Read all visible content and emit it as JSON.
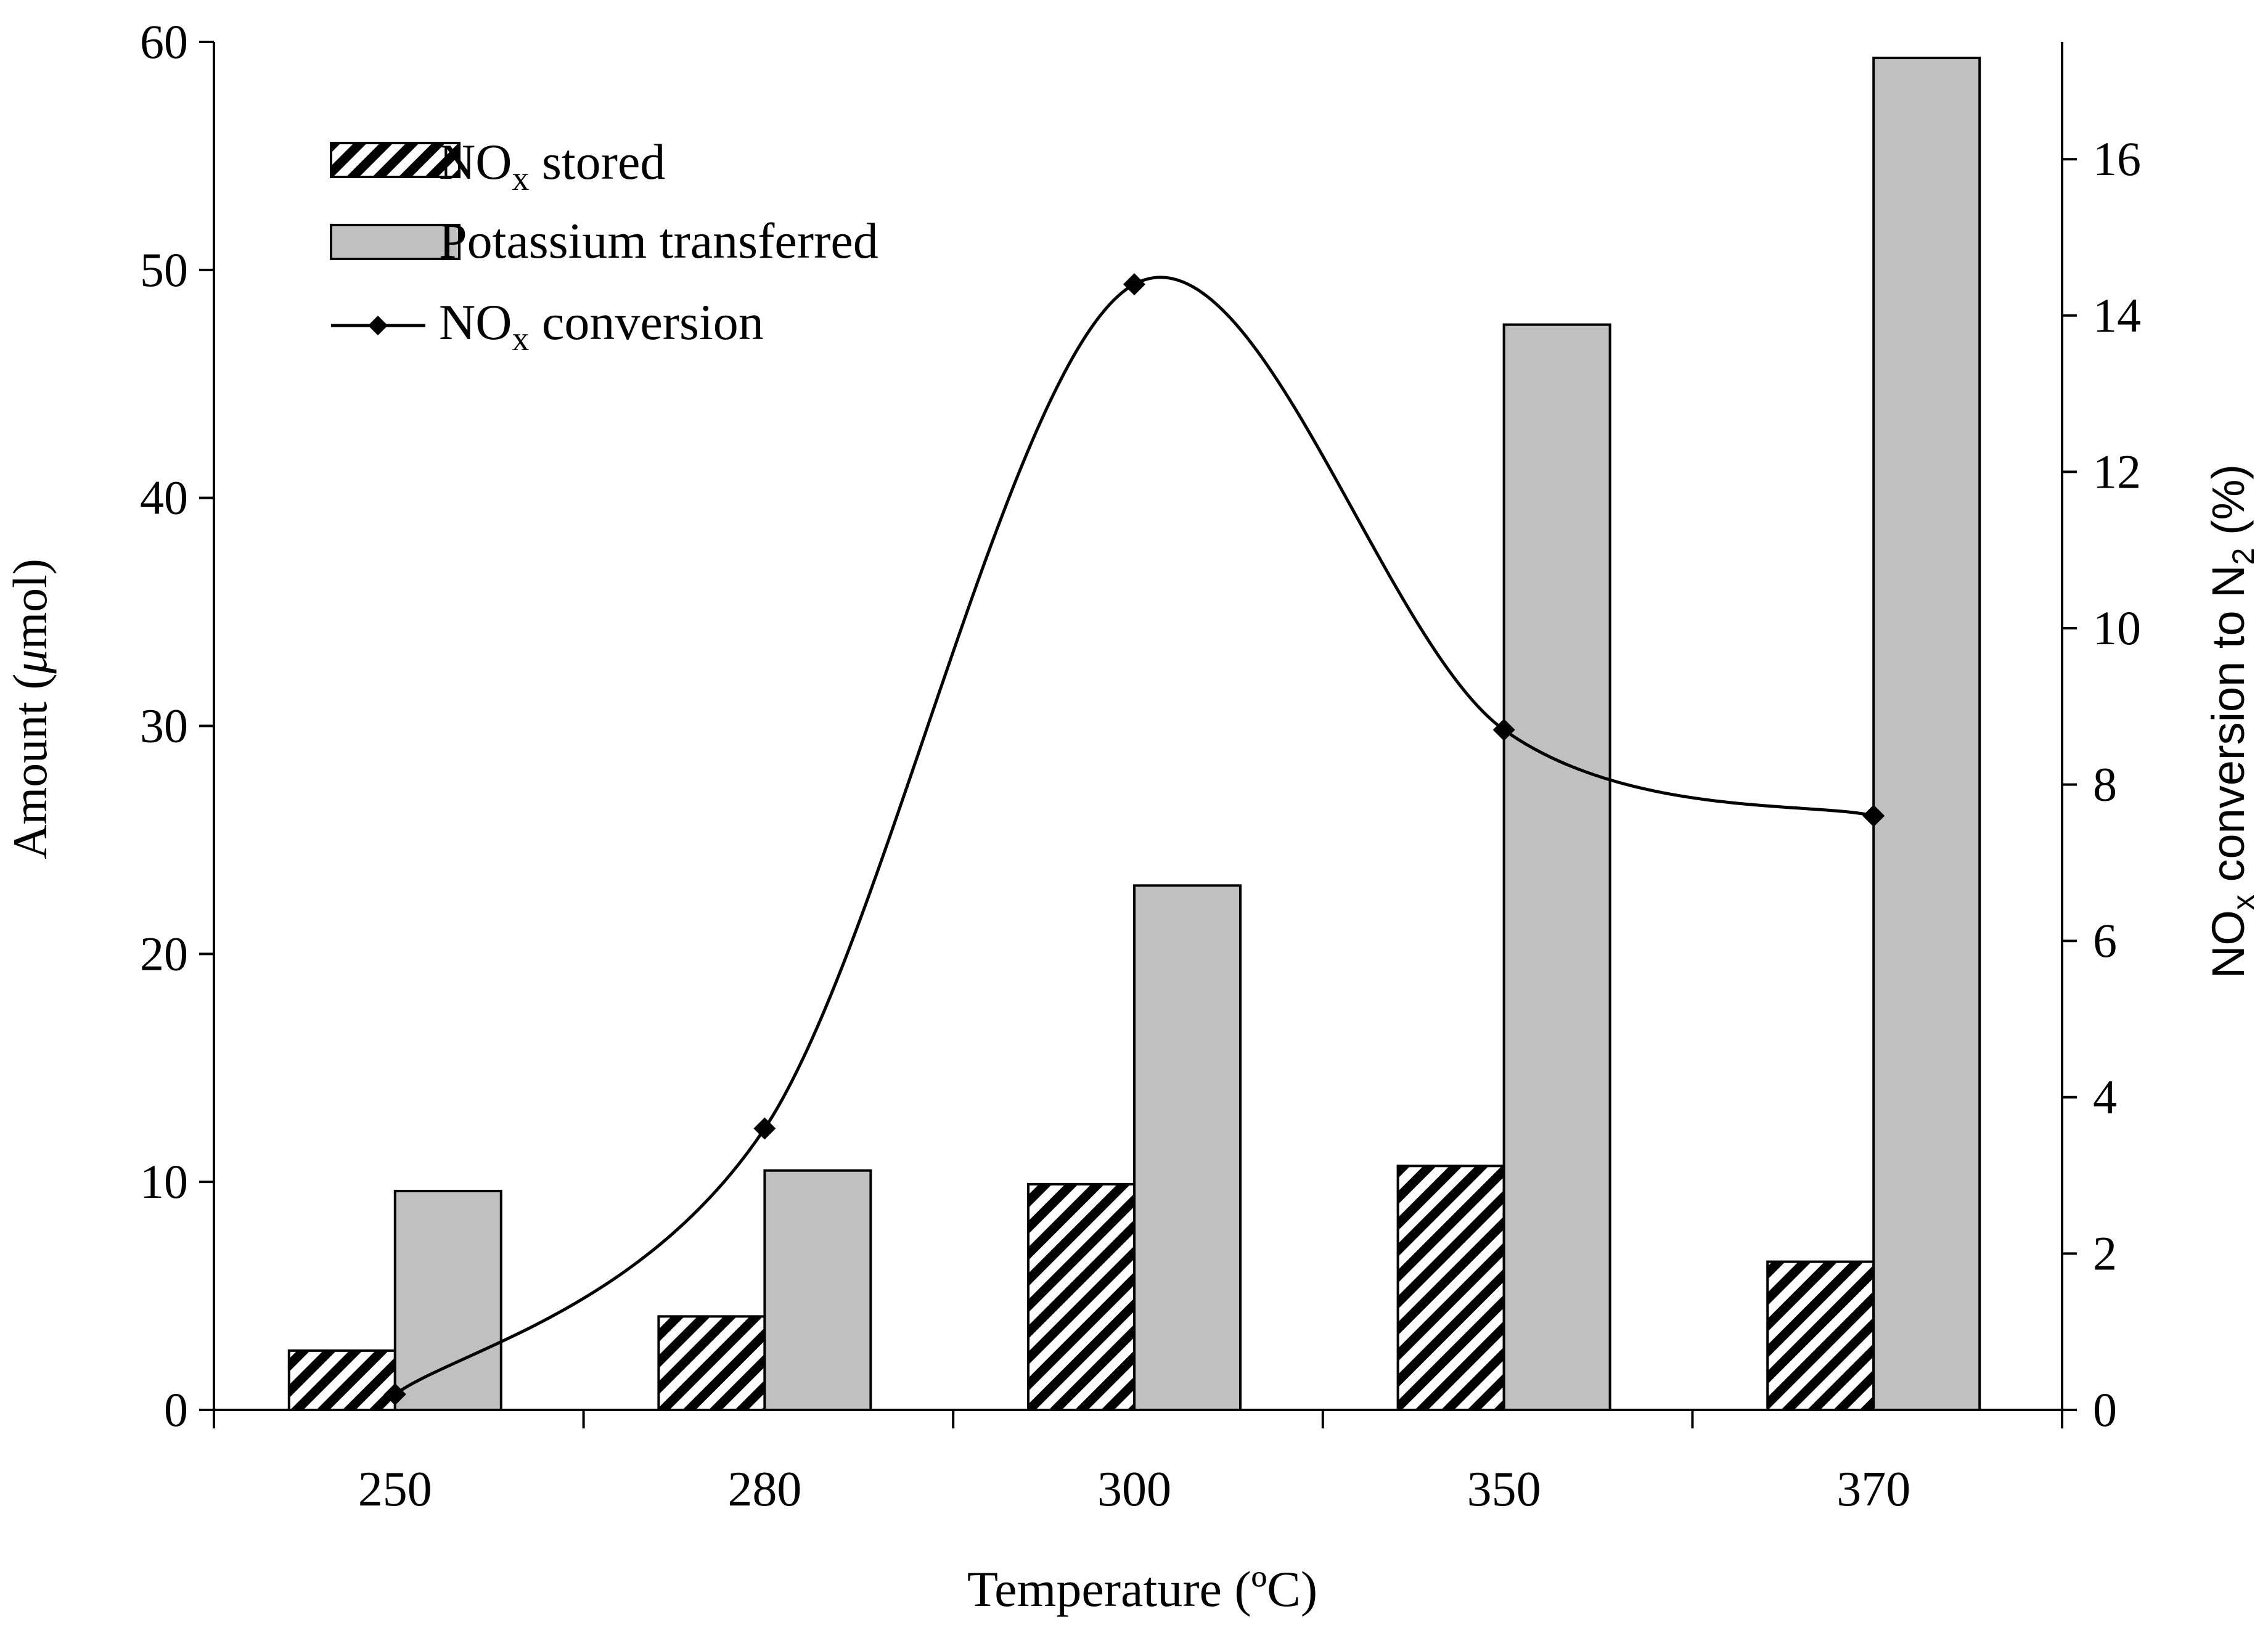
{
  "chart_data": {
    "type": "bar",
    "categories": [
      "250",
      "280",
      "300",
      "350",
      "370"
    ],
    "xlabel": "Temperature (ºC)",
    "ylabel": {
      "prefix": "Amount (",
      "mu": "μ",
      "suffix": "mol)"
    },
    "y2label": {
      "p1": "NO",
      "p1sub": "x",
      "p2": " conversion to N",
      "p2sub": "2",
      "p3": " (%)"
    },
    "ylim": [
      0,
      60
    ],
    "yticks": [
      "0",
      "10",
      "20",
      "30",
      "40",
      "50",
      "60"
    ],
    "y2lim": [
      0,
      17.5
    ],
    "y2ticks": [
      "0",
      "2",
      "4",
      "6",
      "8",
      "10",
      "12",
      "14",
      "16"
    ],
    "grid": false,
    "legend_position": "top-left",
    "series": [
      {
        "name": "NOx stored",
        "kind": "bar",
        "axis": "left",
        "pattern": "diagonal-hatch",
        "values": [
          2.6,
          4.1,
          9.9,
          10.7,
          6.5
        ]
      },
      {
        "name": "Potassium transferred",
        "kind": "bar",
        "axis": "left",
        "color": "#c0c0c0",
        "values": [
          9.6,
          10.5,
          23.0,
          47.6,
          59.3
        ]
      },
      {
        "name": "NOx conversion",
        "kind": "line",
        "axis": "right",
        "marker": "diamond",
        "color": "#000000",
        "smooth": true,
        "values": [
          0.2,
          3.6,
          14.4,
          8.7,
          7.6
        ]
      }
    ],
    "legend": [
      {
        "main": "NO",
        "sub": "x",
        "tail": " stored"
      },
      {
        "main": "Potassium transferred",
        "sub": "",
        "tail": ""
      },
      {
        "main": "NO",
        "sub": "x",
        "tail": " conversion"
      }
    ]
  }
}
